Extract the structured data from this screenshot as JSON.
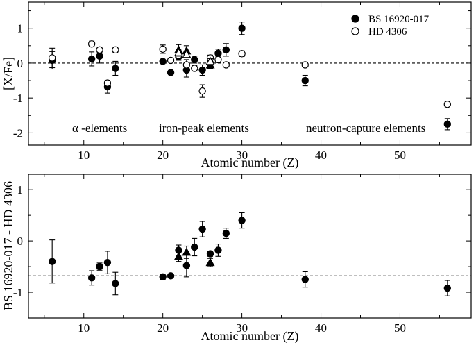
{
  "chart_data": [
    {
      "type": "scatter",
      "xlabel": "Atomic number (Z)",
      "ylabel": "[X/Fe]",
      "xlim": [
        3,
        59
      ],
      "ylim": [
        -2.35,
        1.75
      ],
      "xticks": [
        "10",
        "20",
        "30",
        "40",
        "50"
      ],
      "yticks": [
        "1",
        "0",
        "-1",
        "-2"
      ],
      "reference_line": 0,
      "annotations": [
        "α -elements",
        "iron-peak elements",
        "neutron-capture elements"
      ],
      "legend_position": "top-right",
      "series": [
        {
          "name": "BS 16920-017",
          "marker": "filled-circle",
          "points": [
            {
              "x": 6,
              "y": 0.08,
              "err": 0.25
            },
            {
              "x": 11,
              "y": 0.12,
              "err": 0.2
            },
            {
              "x": 12,
              "y": 0.2,
              "err": 0.2
            },
            {
              "x": 13,
              "y": -0.68,
              "err": 0.18
            },
            {
              "x": 14,
              "y": -0.15,
              "err": 0.2
            },
            {
              "x": 20,
              "y": 0.05,
              "err": 0.05
            },
            {
              "x": 21,
              "y": -0.27,
              "err": 0.05
            },
            {
              "x": 22,
              "y": 0.18,
              "err": 0.1
            },
            {
              "x": 23,
              "y": -0.2,
              "err": 0.2
            },
            {
              "x": 24,
              "y": 0.1,
              "err": 0.1
            },
            {
              "x": 25,
              "y": -0.2,
              "err": 0.15
            },
            {
              "x": 26,
              "y": 0.0,
              "err": 0.15
            },
            {
              "x": 27,
              "y": 0.28,
              "err": 0.12
            },
            {
              "x": 28,
              "y": 0.38,
              "err": 0.18
            },
            {
              "x": 30,
              "y": 1.0,
              "err": 0.18
            },
            {
              "x": 38,
              "y": -0.5,
              "err": 0.15
            },
            {
              "x": 56,
              "y": -1.75,
              "err": 0.16
            }
          ]
        },
        {
          "name": "HD 4306",
          "marker": "open-circle",
          "points": [
            {
              "x": 6,
              "y": 0.15,
              "err": 0.28
            },
            {
              "x": 11,
              "y": 0.55,
              "err": 0.08
            },
            {
              "x": 12,
              "y": 0.38,
              "err": 0.08
            },
            {
              "x": 13,
              "y": -0.57,
              "err": 0.08
            },
            {
              "x": 14,
              "y": 0.38,
              "err": 0.08
            },
            {
              "x": 20,
              "y": 0.4,
              "err": 0.12
            },
            {
              "x": 21,
              "y": 0.08,
              "err": 0.05
            },
            {
              "x": 22,
              "y": 0.22,
              "err": 0.1
            },
            {
              "x": 23,
              "y": -0.05,
              "err": 0.15
            },
            {
              "x": 24,
              "y": -0.15,
              "err": 0.08
            },
            {
              "x": 25,
              "y": -0.8,
              "err": 0.18
            },
            {
              "x": 26,
              "y": 0.15,
              "err": 0.08
            },
            {
              "x": 27,
              "y": 0.1,
              "err": 0.08
            },
            {
              "x": 28,
              "y": -0.05,
              "err": 0.06
            },
            {
              "x": 30,
              "y": 0.27,
              "err": 0.08
            },
            {
              "x": 38,
              "y": -0.05,
              "err": 0.06
            },
            {
              "x": 56,
              "y": -1.18,
              "err": 0.07
            }
          ]
        },
        {
          "name": "",
          "marker": "filled-triangle",
          "points": [
            {
              "x": 22,
              "y": 0.38,
              "err": 0.15
            },
            {
              "x": 23,
              "y": 0.35,
              "err": 0.15
            },
            {
              "x": 26,
              "y": -0.05,
              "err": 0.1
            }
          ]
        },
        {
          "name": "",
          "marker": "open-triangle",
          "points": [
            {
              "x": 22,
              "y": 0.3,
              "err": 0.1
            },
            {
              "x": 23,
              "y": 0.25,
              "err": 0.1
            },
            {
              "x": 26,
              "y": 0.05,
              "err": 0.08
            }
          ]
        }
      ]
    },
    {
      "type": "scatter",
      "xlabel": "Atomic number (Z)",
      "ylabel": "BS 16920-017 - HD 4306",
      "xlim": [
        3,
        59
      ],
      "ylim": [
        -1.5,
        1.3
      ],
      "xticks": [
        "10",
        "20",
        "30",
        "40",
        "50"
      ],
      "yticks": [
        "1",
        "0",
        "-1"
      ],
      "reference_line": -0.68,
      "series": [
        {
          "name": "",
          "marker": "filled-circle",
          "points": [
            {
              "x": 6,
              "y": -0.4,
              "err": 0.42
            },
            {
              "x": 11,
              "y": -0.72,
              "err": 0.14
            },
            {
              "x": 12,
              "y": -0.5,
              "err": 0.07
            },
            {
              "x": 13,
              "y": -0.42,
              "err": 0.22
            },
            {
              "x": 14,
              "y": -0.83,
              "err": 0.22
            },
            {
              "x": 20,
              "y": -0.7,
              "err": 0.05
            },
            {
              "x": 21,
              "y": -0.68,
              "err": 0.03
            },
            {
              "x": 22,
              "y": -0.18,
              "err": 0.1
            },
            {
              "x": 23,
              "y": -0.48,
              "err": 0.22
            },
            {
              "x": 24,
              "y": -0.12,
              "err": 0.17
            },
            {
              "x": 25,
              "y": 0.23,
              "err": 0.15
            },
            {
              "x": 26,
              "y": -0.25,
              "err": 0.05
            },
            {
              "x": 27,
              "y": -0.18,
              "err": 0.12
            },
            {
              "x": 28,
              "y": 0.15,
              "err": 0.1
            },
            {
              "x": 30,
              "y": 0.4,
              "err": 0.15
            },
            {
              "x": 38,
              "y": -0.75,
              "err": 0.15
            },
            {
              "x": 56,
              "y": -0.92,
              "err": 0.15
            }
          ]
        },
        {
          "name": "",
          "marker": "filled-triangle",
          "points": [
            {
              "x": 22,
              "y": -0.3,
              "err": 0.1
            },
            {
              "x": 23,
              "y": -0.22,
              "err": 0.12
            },
            {
              "x": 26,
              "y": -0.42,
              "err": 0.08
            }
          ]
        }
      ]
    }
  ]
}
